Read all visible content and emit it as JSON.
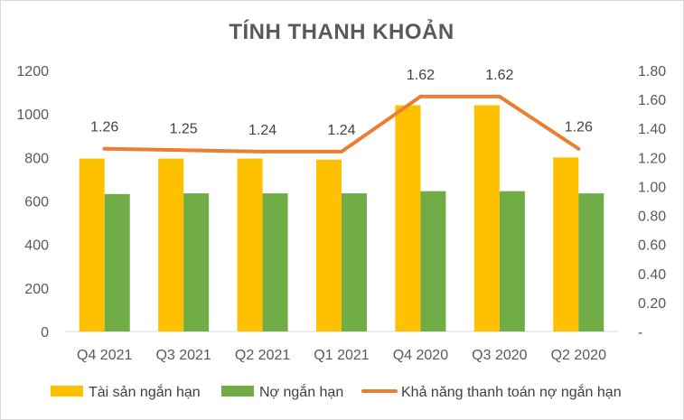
{
  "chart_data": {
    "type": "bar",
    "title": "TÍNH THANH KHOẢN",
    "categories": [
      "Q4 2021",
      "Q3 2021",
      "Q2 2021",
      "Q1 2021",
      "Q4 2020",
      "Q3 2020",
      "Q2 2020"
    ],
    "series": [
      {
        "name": "Tài sản ngắn hạn",
        "type": "bar",
        "axis": "left",
        "color": "#FFC000",
        "values": [
          795,
          795,
          795,
          790,
          1040,
          1040,
          800
        ]
      },
      {
        "name": "Nợ ngắn hạn",
        "type": "bar",
        "axis": "left",
        "color": "#70AD47",
        "values": [
          632,
          635,
          635,
          635,
          645,
          645,
          635
        ]
      },
      {
        "name": "Khả năng thanh toán nợ ngắn hạn",
        "type": "line",
        "axis": "right",
        "color": "#ED7D31",
        "values": [
          1.26,
          1.25,
          1.24,
          1.24,
          1.62,
          1.62,
          1.26
        ],
        "data_labels": [
          "1.26",
          "1.25",
          "1.24",
          "1.24",
          "1.62",
          "1.62",
          "1.26"
        ]
      }
    ],
    "y_left": {
      "ylim": [
        0,
        1200
      ],
      "ticks": [
        "0",
        "200",
        "400",
        "600",
        "800",
        "1000",
        "1200"
      ]
    },
    "y_right": {
      "ylim": [
        0,
        1.8
      ],
      "ticks": [
        "-",
        "0.20",
        "0.40",
        "0.60",
        "0.80",
        "1.00",
        "1.20",
        "1.40",
        "1.60",
        "1.80"
      ]
    },
    "grid": false,
    "legend_position": "bottom"
  }
}
